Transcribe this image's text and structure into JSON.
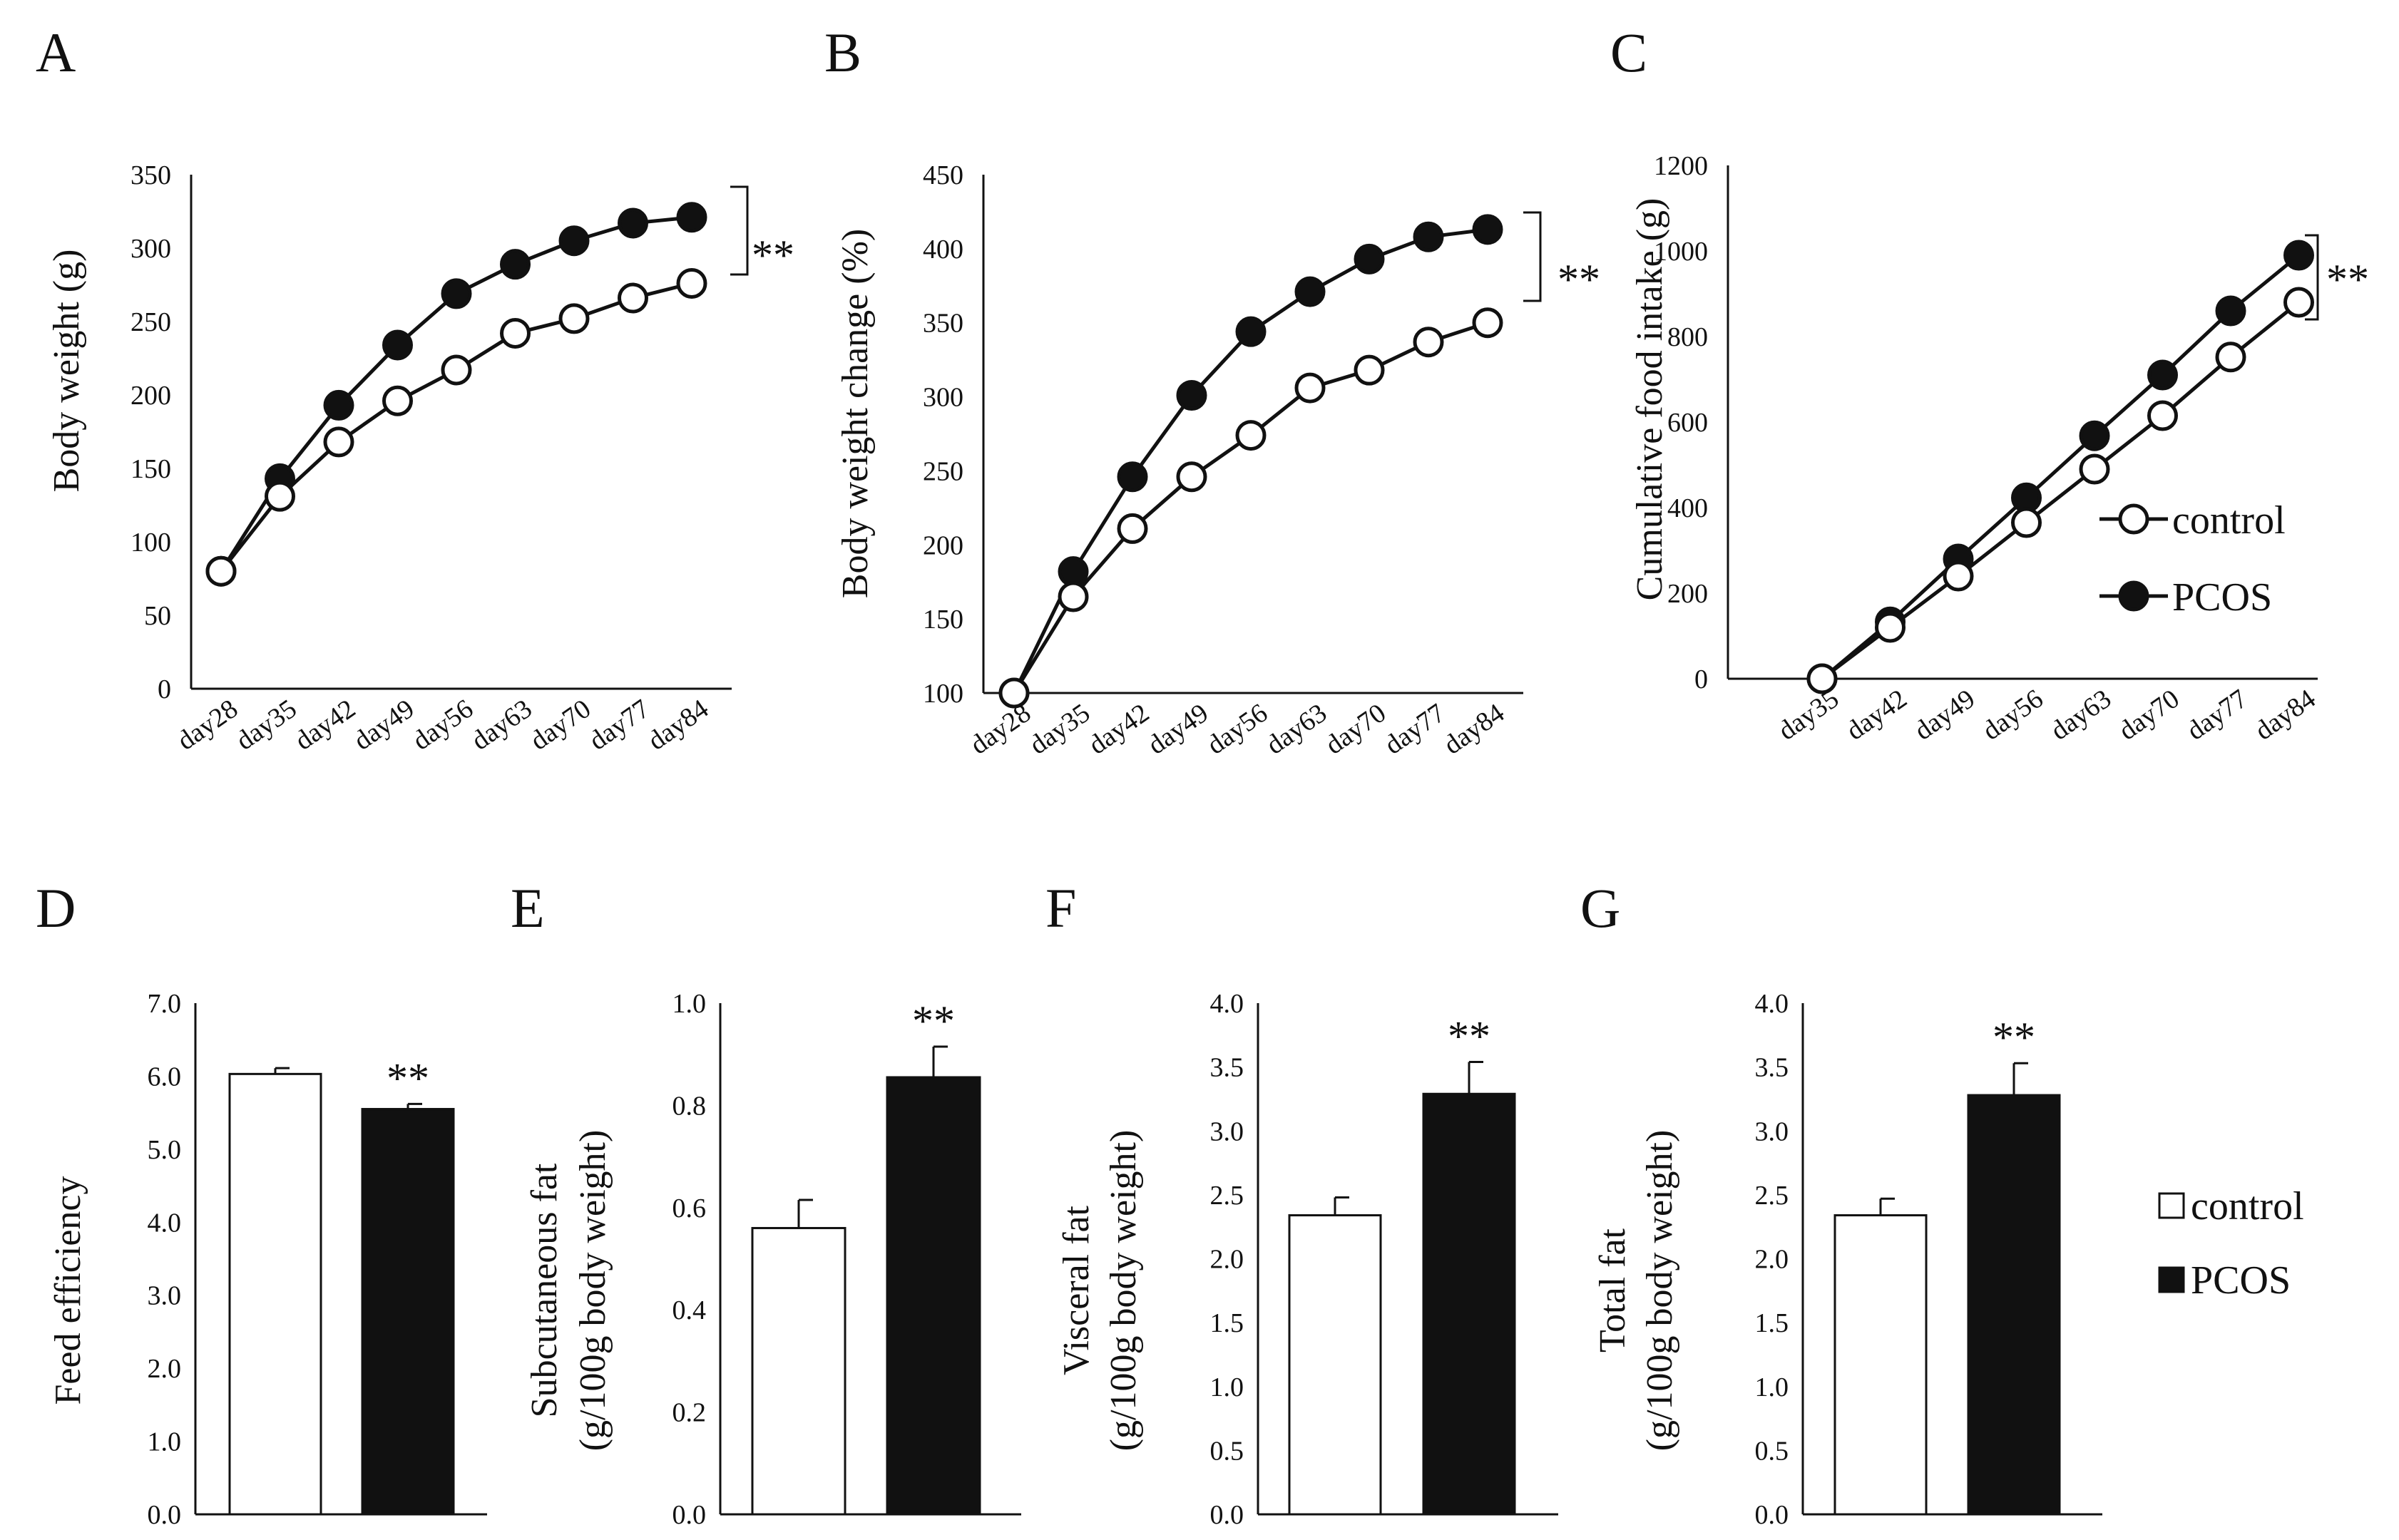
{
  "colors": {
    "ink": "#111111",
    "paper": "#ffffff"
  },
  "legend_line": {
    "items": [
      "control",
      "PCOS"
    ]
  },
  "legend_bar": {
    "items": [
      "control",
      "PCOS"
    ]
  },
  "chart_data": [
    {
      "panel": "A",
      "type": "line",
      "ylabel": "Body weight (g)",
      "ylim": [
        0,
        350
      ],
      "yticks": [
        "0",
        "50",
        "100",
        "150",
        "200",
        "250",
        "300",
        "350"
      ],
      "categories": [
        "day28",
        "day35",
        "day42",
        "day49",
        "day56",
        "day63",
        "day70",
        "day77",
        "day84"
      ],
      "series": [
        {
          "name": "control",
          "values": [
            80,
            131,
            168,
            196,
            217,
            242,
            252,
            266,
            276
          ]
        },
        {
          "name": "PCOS",
          "values": [
            80,
            143,
            193,
            234,
            269,
            289,
            305,
            317,
            321
          ]
        }
      ],
      "significance": "**"
    },
    {
      "panel": "B",
      "type": "line",
      "ylabel": "Body weight change (%)",
      "ylim": [
        100,
        450
      ],
      "yticks": [
        "100",
        "150",
        "200",
        "250",
        "300",
        "350",
        "400",
        "450"
      ],
      "categories": [
        "day28",
        "day35",
        "day42",
        "day49",
        "day56",
        "day63",
        "day70",
        "day77",
        "day84"
      ],
      "series": [
        {
          "name": "control",
          "values": [
            100,
            165,
            211,
            246,
            274,
            306,
            318,
            337,
            350
          ]
        },
        {
          "name": "PCOS",
          "values": [
            100,
            182,
            246,
            301,
            344,
            371,
            393,
            408,
            413
          ]
        }
      ],
      "significance": "**"
    },
    {
      "panel": "C",
      "type": "line",
      "ylabel": "Cumulative food intake (g)",
      "ylim": [
        0,
        1200
      ],
      "yticks": [
        "0",
        "200",
        "400",
        "600",
        "800",
        "1000",
        "1200"
      ],
      "categories": [
        "day35",
        "day42",
        "day49",
        "day56",
        "day63",
        "day70",
        "day77",
        "day84"
      ],
      "series": [
        {
          "name": "control",
          "values": [
            0,
            120,
            240,
            365,
            490,
            615,
            752,
            880
          ]
        },
        {
          "name": "PCOS",
          "values": [
            0,
            133,
            280,
            423,
            568,
            710,
            860,
            990
          ]
        }
      ],
      "significance": "**"
    },
    {
      "panel": "D",
      "type": "bar",
      "ylabel": "Feed efficiency",
      "ylim": [
        0,
        7
      ],
      "yticks": [
        "0.0",
        "1.0",
        "2.0",
        "3.0",
        "4.0",
        "5.0",
        "6.0",
        "7.0"
      ],
      "categories": [
        "control",
        "PCOS"
      ],
      "values": [
        6.03,
        5.55
      ],
      "errors": [
        0.08,
        0.07
      ],
      "significance": "**"
    },
    {
      "panel": "E",
      "type": "bar",
      "ylabel": "Subcutaneous fat",
      "ylabel2": "(g/100g body weight)",
      "ylim": [
        0,
        1
      ],
      "yticks": [
        "0.0",
        "0.2",
        "0.4",
        "0.6",
        "0.8",
        "1.0"
      ],
      "categories": [
        "control",
        "PCOS"
      ],
      "values": [
        0.56,
        0.855
      ],
      "errors": [
        0.055,
        0.06
      ],
      "significance": "**"
    },
    {
      "panel": "F",
      "type": "bar",
      "ylabel": "Visceral fat",
      "ylabel2": "(g/100g body weight)",
      "ylim": [
        0,
        4
      ],
      "yticks": [
        "0.0",
        "0.5",
        "1.0",
        "1.5",
        "2.0",
        "2.5",
        "3.0",
        "3.5",
        "4.0"
      ],
      "categories": [
        "control",
        "PCOS"
      ],
      "values": [
        2.34,
        3.29
      ],
      "errors": [
        0.14,
        0.25
      ],
      "significance": "**"
    },
    {
      "panel": "G",
      "type": "bar",
      "ylabel": "Total fat",
      "ylabel2": "(g/100g body weight)",
      "ylim": [
        0,
        4
      ],
      "yticks": [
        "0.0",
        "0.5",
        "1.0",
        "1.5",
        "2.0",
        "2.5",
        "3.0",
        "3.5",
        "4.0"
      ],
      "categories": [
        "control",
        "PCOS"
      ],
      "values": [
        2.34,
        3.28
      ],
      "errors": [
        0.13,
        0.25
      ],
      "significance": "**"
    }
  ]
}
